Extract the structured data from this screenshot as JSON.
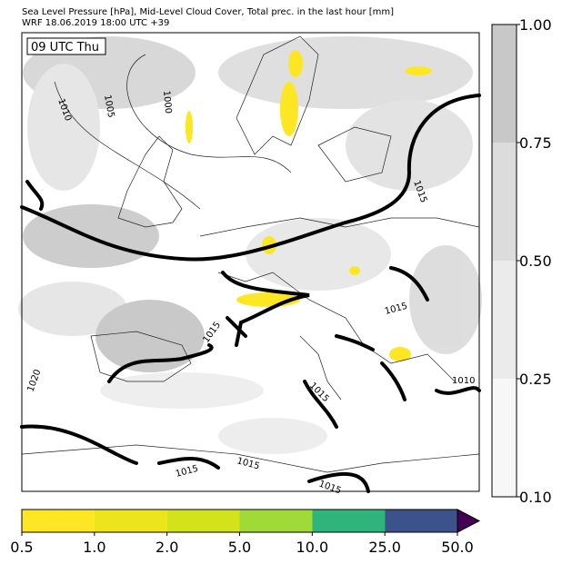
{
  "header": {
    "title": "Sea Level Pressure [hPa], Mid-Level Cloud Cover, Total prec. in the last hour [mm]",
    "subtitle": "WRF 18.06.2019 18:00 UTC +39"
  },
  "time_label": "09 UTC Thu",
  "isobar_labels": [
    "1010",
    "1005",
    "1000",
    "1015",
    "1015",
    "1015",
    "1020",
    "1015",
    "1010",
    "1015",
    "1015",
    "1015"
  ],
  "cloud_colorbar": {
    "ticks": [
      "0.10",
      "0.25",
      "0.50",
      "0.75",
      "1.00"
    ],
    "colors": [
      "#f7f7f7",
      "#ebebeb",
      "#dcdcdc",
      "#c8c8c8"
    ]
  },
  "precip_colorbar": {
    "ticks": [
      "0.5",
      "1.0",
      "2.0",
      "5.0",
      "10.0",
      "25.0",
      "50.0"
    ],
    "colors": [
      "#fde725",
      "#ede51b",
      "#d2e21b",
      "#a0da39",
      "#2fb47c",
      "#3b528b"
    ],
    "extend_color": "#440154"
  }
}
